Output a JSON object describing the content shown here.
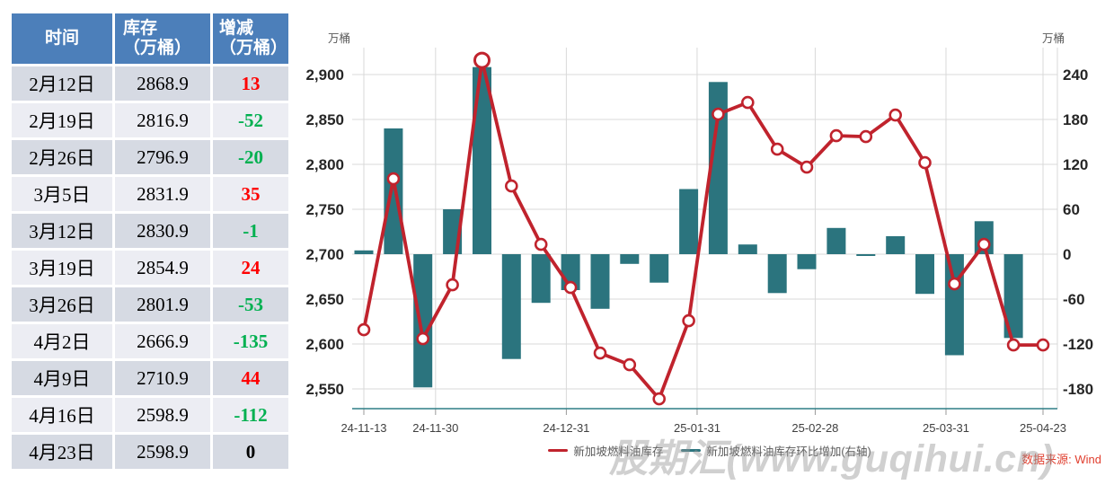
{
  "table": {
    "headers": {
      "time": {
        "line1": "时间",
        "line2": ""
      },
      "inventory": {
        "line1": "库存",
        "line2": "（万桶）"
      },
      "change": {
        "line1": "增减",
        "line2": "（万桶）"
      }
    },
    "rows": [
      {
        "date": "2月12日",
        "inventory": "2868.9",
        "change": "13"
      },
      {
        "date": "2月19日",
        "inventory": "2816.9",
        "change": "-52"
      },
      {
        "date": "2月26日",
        "inventory": "2796.9",
        "change": "-20"
      },
      {
        "date": "3月5日",
        "inventory": "2831.9",
        "change": "35"
      },
      {
        "date": "3月12日",
        "inventory": "2830.9",
        "change": "-1"
      },
      {
        "date": "3月19日",
        "inventory": "2854.9",
        "change": "24"
      },
      {
        "date": "3月26日",
        "inventory": "2801.9",
        "change": "-53"
      },
      {
        "date": "4月2日",
        "inventory": "2666.9",
        "change": "-135"
      },
      {
        "date": "4月9日",
        "inventory": "2710.9",
        "change": "44"
      },
      {
        "date": "4月16日",
        "inventory": "2598.9",
        "change": "-112"
      },
      {
        "date": "4月23日",
        "inventory": "2598.9",
        "change": "0"
      }
    ]
  },
  "chart_data": {
    "type": "bar+line",
    "x": [
      "24-11-13",
      "24-11-20",
      "24-11-27",
      "24-12-04",
      "24-12-11",
      "24-12-18",
      "24-12-25",
      "25-01-01",
      "25-01-08",
      "25-01-15",
      "25-01-22",
      "25-01-29",
      "25-02-05",
      "25-02-12",
      "25-02-19",
      "25-02-26",
      "25-03-05",
      "25-03-12",
      "25-03-19",
      "25-03-26",
      "25-04-02",
      "25-04-09",
      "25-04-16",
      "25-04-23"
    ],
    "series": [
      {
        "name": "新加坡燃料油库存",
        "type": "line",
        "axis": "left",
        "color": "#c0232d",
        "values": [
          2615.9,
          2783.9,
          2605.9,
          2665.9,
          2915.9,
          2775.9,
          2710.9,
          2662.9,
          2589.9,
          2576.9,
          2538.9,
          2625.9,
          2855.9,
          2868.9,
          2816.9,
          2796.9,
          2831.9,
          2830.9,
          2854.9,
          2801.9,
          2666.9,
          2710.9,
          2598.9,
          2598.9
        ]
      },
      {
        "name": "新加坡燃料油库存环比增加(右轴)",
        "type": "bar",
        "axis": "right",
        "color": "#2b747e",
        "values": [
          5,
          168,
          -178,
          60,
          250,
          -140,
          -65,
          -48,
          -73,
          -13,
          -38,
          87,
          230,
          13,
          -52,
          -20,
          35,
          -1,
          24,
          -53,
          -135,
          44,
          -112,
          0
        ]
      }
    ],
    "left_axis": {
      "unit": "万桶",
      "ticks": [
        2900,
        2850,
        2800,
        2750,
        2700,
        2650,
        2600,
        2550
      ],
      "tick_labels": [
        "2,900",
        "2,850",
        "2,800",
        "2,750",
        "2,700",
        "2,650",
        "2,600",
        "2,550"
      ]
    },
    "right_axis": {
      "unit": "万桶",
      "ticks": [
        240,
        180,
        120,
        60,
        0,
        -60,
        -120,
        -180
      ],
      "tick_labels": [
        "240",
        "180",
        "120",
        "60",
        "0",
        "-60",
        "-120",
        "-180"
      ]
    },
    "x_axis": {
      "tick_labels": [
        "24-11-13",
        "24-11-30",
        "24-12-31",
        "25-01-31",
        "25-02-28",
        "25-03-31",
        "25-04-23"
      ]
    },
    "grid": true,
    "legend_position": "bottom"
  },
  "footer": {
    "source": "数据来源: Wind",
    "watermark": "股期汇(www.guqihui.cn)"
  },
  "colors": {
    "line_red": "#c0232d",
    "bar_teal": "#2b747e",
    "header_blue": "#4c7fba",
    "row_dark": "#d6dae3",
    "row_light": "#ecedf3",
    "positive_text": "#fe0000",
    "negative_text": "#00b050",
    "grid": "#d9d9d9",
    "axis_baseline": "#2e7e86",
    "source_red": "#e03e2e"
  }
}
